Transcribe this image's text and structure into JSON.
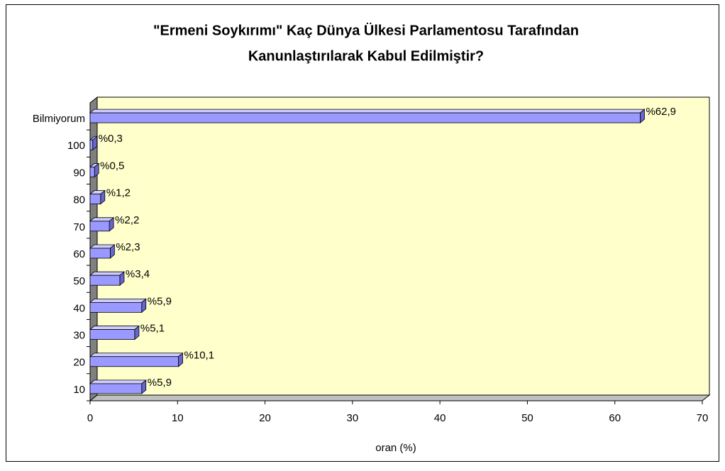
{
  "chart_data": {
    "type": "bar3d_horizontal",
    "title": [
      "\"Ermeni Soykırımı\" Kaç Dünya Ülkesi Parlamentosu Tarafından",
      "Kanunlaştırılarak Kabul Edilmiştir?"
    ],
    "categories": [
      "10",
      "20",
      "30",
      "40",
      "50",
      "60",
      "70",
      "80",
      "90",
      "100",
      "Bilmiyorum"
    ],
    "values": [
      5.9,
      10.1,
      5.1,
      5.9,
      3.4,
      2.3,
      2.2,
      1.2,
      0.5,
      0.3,
      62.9
    ],
    "value_labels": [
      "%5,9",
      "%10,1",
      "%5,1",
      "%5,9",
      "%3,4",
      "%2,3",
      "%2,2",
      "%1,2",
      "%0,5",
      "%0,3",
      "%62,9"
    ],
    "color": "#9999ff",
    "xlabel": "oran (%)",
    "xlim": [
      0,
      70
    ],
    "xticks": [
      0,
      10,
      20,
      30,
      40,
      50,
      60,
      70
    ]
  }
}
